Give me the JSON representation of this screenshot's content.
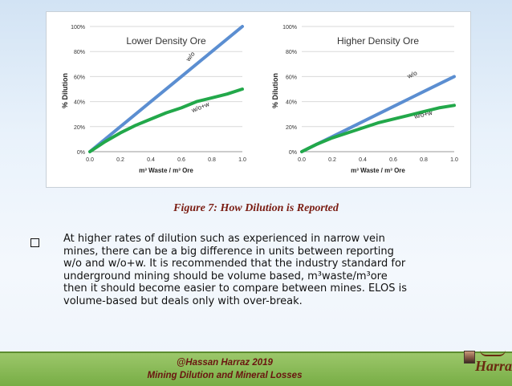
{
  "chart_data": [
    {
      "type": "line",
      "title": "Lower Density Ore",
      "xlabel": "m³ Waste / m³ Ore",
      "ylabel": "% Dilution",
      "x_ticks": [
        "0.0",
        "0.2",
        "0.4",
        "0.6",
        "0.8",
        "1.0"
      ],
      "y_ticks": [
        "0%",
        "20%",
        "40%",
        "60%",
        "80%",
        "100%"
      ],
      "xlim": [
        0,
        1
      ],
      "ylim": [
        0,
        100
      ],
      "grid": true,
      "series": [
        {
          "name": "w/o",
          "color": "#5b8ed1",
          "x": [
            0,
            0.2,
            0.4,
            0.6,
            0.8,
            1.0
          ],
          "y": [
            0,
            20,
            40,
            60,
            80,
            100
          ]
        },
        {
          "name": "w/o+w",
          "color": "#22a84a",
          "x": [
            0,
            0.1,
            0.2,
            0.3,
            0.4,
            0.5,
            0.6,
            0.7,
            0.8,
            0.9,
            1.0
          ],
          "y": [
            0,
            8,
            15,
            21,
            26,
            31,
            35,
            40,
            43,
            46,
            50
          ]
        }
      ]
    },
    {
      "type": "line",
      "title": "Higher Density Ore",
      "xlabel": "m³ Waste / m³ Ore",
      "ylabel": "% Dilution",
      "x_ticks": [
        "0.0",
        "0.2",
        "0.4",
        "0.6",
        "0.8",
        "1.0"
      ],
      "y_ticks": [
        "0%",
        "20%",
        "40%",
        "60%",
        "80%",
        "100%"
      ],
      "xlim": [
        0,
        1
      ],
      "ylim": [
        0,
        100
      ],
      "grid": true,
      "series": [
        {
          "name": "w/o",
          "color": "#5b8ed1",
          "x": [
            0,
            0.2,
            0.4,
            0.6,
            0.8,
            1.0
          ],
          "y": [
            0,
            12,
            24,
            36,
            48,
            60
          ]
        },
        {
          "name": "w/o+w",
          "color": "#22a84a",
          "x": [
            0,
            0.1,
            0.2,
            0.3,
            0.4,
            0.5,
            0.6,
            0.7,
            0.8,
            0.9,
            1.0
          ],
          "y": [
            0,
            6,
            11,
            15,
            19,
            23,
            26,
            29,
            32,
            35,
            37
          ]
        }
      ]
    }
  ],
  "caption": "Figure 7: How Dilution is Reported",
  "body_lines": [
    "At higher rates of dilution such as experienced in narrow vein",
    "mines, there can be a big difference in units between reporting",
    "w/o and w/o+w. It is recommended that the industry standard for",
    "underground mining should be volume based, m³waste/m³ore",
    "then it should become easier to compare between mines. ELOS is",
    "volume-based but deals only with over-break."
  ],
  "footer": {
    "line1": "@Hassan Harraz 2019",
    "line2": "Mining Dilution and Mineral Losses"
  },
  "logo": {
    "text": "Harraz",
    "colors": {
      "text": "#6a2a10"
    }
  }
}
